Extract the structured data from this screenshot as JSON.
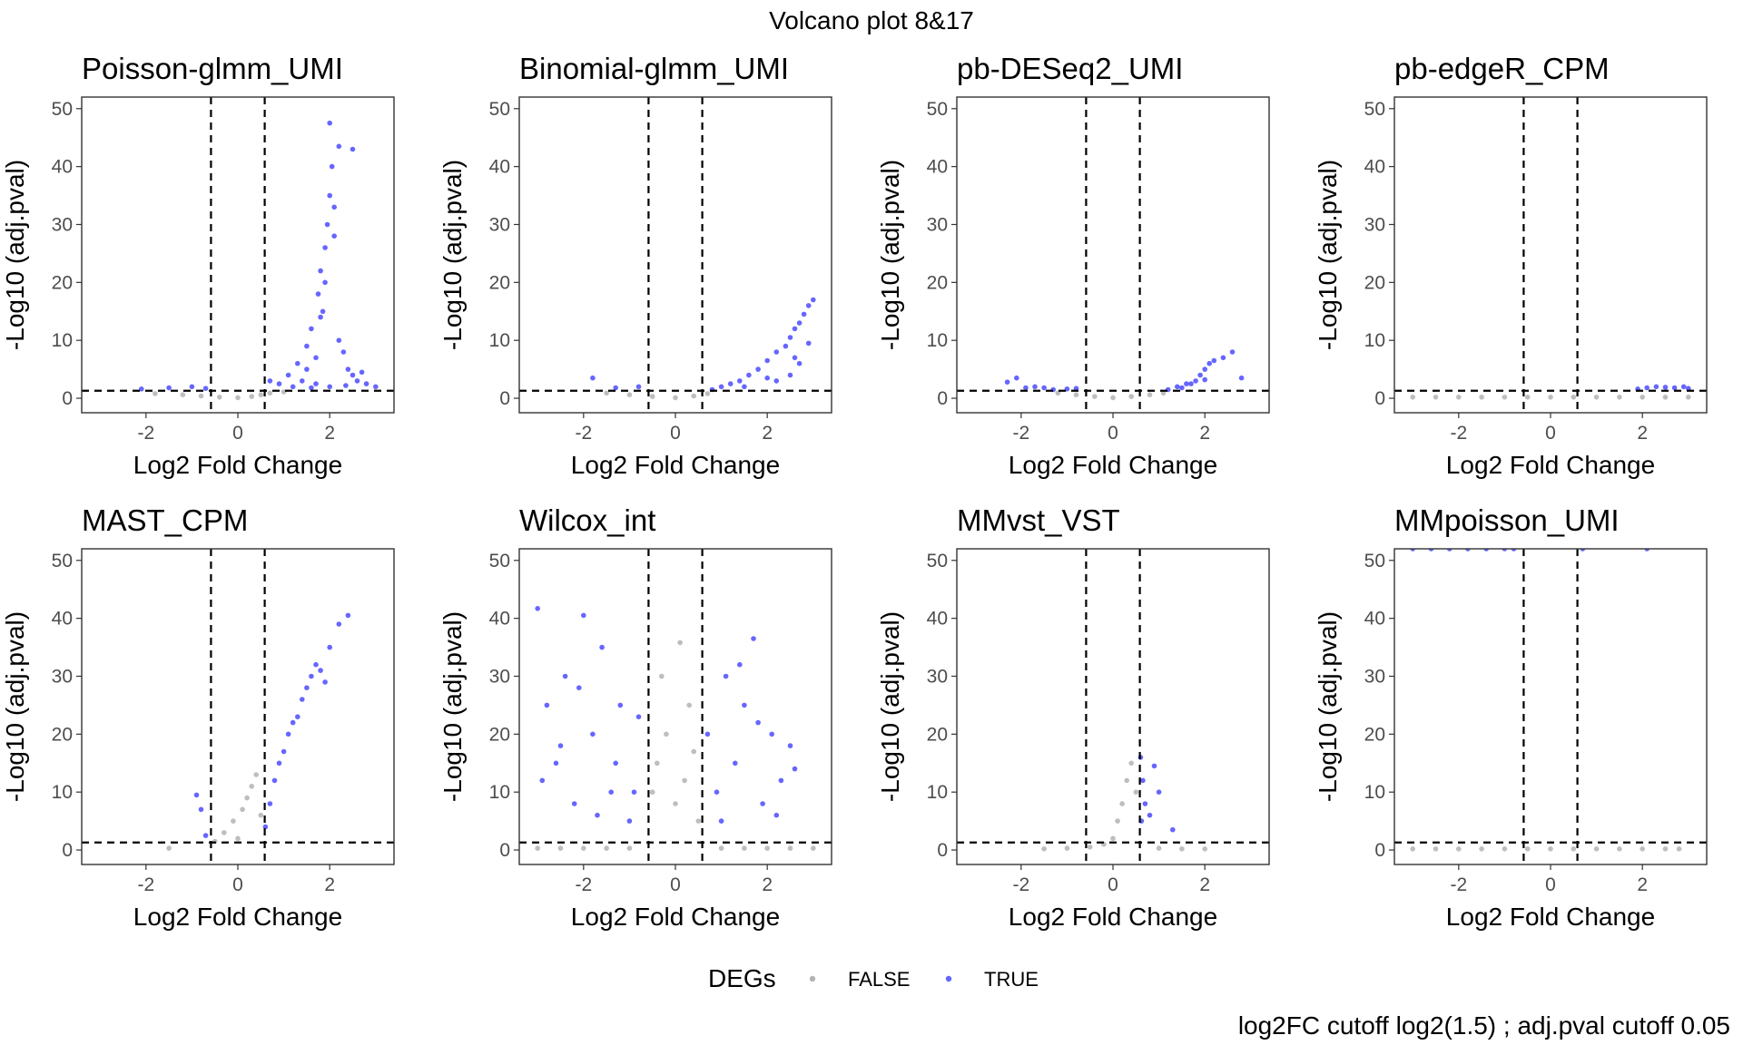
{
  "figure": {
    "title": "Volcano plot 8&17",
    "caption": "log2FC cutoff  log2(1.5) ; adj.pval cutoff 0.05"
  },
  "legend": {
    "title": "DEGs",
    "items": [
      {
        "label": "FALSE",
        "color": "#b3b3b3"
      },
      {
        "label": "TRUE",
        "color": "#0000ff"
      }
    ]
  },
  "colors": {
    "false_points": "#b3b3b3",
    "true_points": "#0000ff",
    "cutoff_lines": "#000000"
  },
  "chart_data": [
    {
      "type": "scatter",
      "title": "Poisson-glmm_UMI",
      "xlabel": "Log2 Fold Change",
      "ylabel": "-Log10 (adj.pval)",
      "xlim": [
        -3.4,
        3.4
      ],
      "ylim": [
        -2.5,
        52
      ],
      "xticks": [
        -2,
        0,
        2
      ],
      "yticks": [
        0,
        10,
        20,
        30,
        40,
        50
      ],
      "cutoffs": {
        "vlines": [
          -0.585,
          0.585
        ],
        "hline": 1.301
      },
      "series": [
        {
          "name": "FALSE",
          "x": [
            -1.8,
            -1.2,
            -0.8,
            -0.4,
            0,
            0.3,
            0.5,
            0.7,
            1.0
          ],
          "y": [
            0.8,
            0.6,
            0.4,
            0.2,
            0.1,
            0.3,
            0.6,
            0.9,
            1.1
          ]
        },
        {
          "name": "TRUE",
          "x": [
            -2.1,
            -1.5,
            -1.0,
            -0.7,
            0.7,
            0.9,
            1.1,
            1.3,
            1.4,
            1.5,
            1.6,
            1.7,
            1.75,
            1.8,
            1.85,
            1.9,
            1.95,
            2.0,
            2.05,
            2.1,
            2.2,
            2.3,
            2.4,
            2.5,
            2.6,
            2.7,
            2.8,
            3.0,
            1.2,
            1.5,
            1.8,
            2.0,
            2.2,
            2.5,
            1.6,
            1.9,
            2.1,
            1.7,
            2.0,
            2.35
          ],
          "y": [
            1.6,
            1.8,
            2.0,
            1.7,
            3.0,
            2.5,
            4.0,
            6.0,
            3.0,
            9.0,
            12.0,
            7.0,
            18.0,
            22.0,
            15.0,
            26.0,
            30.0,
            35.0,
            40.0,
            33.0,
            10.0,
            8.0,
            5.0,
            4.0,
            3.0,
            4.5,
            2.5,
            2.0,
            2.0,
            5.0,
            14.0,
            47.5,
            43.5,
            43.0,
            1.8,
            20.0,
            28.0,
            2.5,
            2.0,
            2.2
          ]
        }
      ]
    },
    {
      "type": "scatter",
      "title": "Binomial-glmm_UMI",
      "xlabel": "Log2 Fold Change",
      "ylabel": "-Log10 (adj.pval)",
      "xlim": [
        -3.4,
        3.4
      ],
      "ylim": [
        -2.5,
        52
      ],
      "xticks": [
        -2,
        0,
        2
      ],
      "yticks": [
        0,
        10,
        20,
        30,
        40,
        50
      ],
      "cutoffs": {
        "vlines": [
          -0.585,
          0.585
        ],
        "hline": 1.301
      },
      "series": [
        {
          "name": "FALSE",
          "x": [
            -1.5,
            -1.0,
            -0.5,
            0,
            0.4,
            0.7
          ],
          "y": [
            0.9,
            0.6,
            0.3,
            0.1,
            0.4,
            0.8
          ]
        },
        {
          "name": "TRUE",
          "x": [
            -1.8,
            -1.3,
            -0.8,
            0.8,
            1.0,
            1.2,
            1.4,
            1.6,
            1.8,
            2.0,
            2.2,
            2.4,
            2.5,
            2.6,
            2.7,
            2.8,
            2.9,
            3.0,
            2.2,
            2.5,
            2.7,
            2.9,
            1.5,
            2.0,
            2.6
          ],
          "y": [
            3.5,
            1.8,
            2.0,
            1.5,
            2.0,
            2.5,
            3.0,
            4.0,
            5.0,
            6.5,
            8.0,
            9.0,
            10.5,
            12.0,
            13.0,
            14.5,
            16.0,
            17.0,
            3.0,
            4.0,
            6.0,
            9.5,
            2.0,
            3.5,
            7.0
          ]
        }
      ]
    },
    {
      "type": "scatter",
      "title": "pb-DESeq2_UMI",
      "xlabel": "Log2 Fold Change",
      "ylabel": "-Log10 (adj.pval)",
      "xlim": [
        -3.4,
        3.4
      ],
      "ylim": [
        -2.5,
        52
      ],
      "xticks": [
        -2,
        0,
        2
      ],
      "yticks": [
        0,
        10,
        20,
        30,
        40,
        50
      ],
      "cutoffs": {
        "vlines": [
          -0.585,
          0.585
        ],
        "hline": 1.301
      },
      "series": [
        {
          "name": "FALSE",
          "x": [
            -1.2,
            -0.8,
            -0.4,
            0,
            0.4,
            0.8,
            1.1
          ],
          "y": [
            0.9,
            0.6,
            0.3,
            0.1,
            0.3,
            0.6,
            0.9
          ]
        },
        {
          "name": "TRUE",
          "x": [
            -2.3,
            -2.1,
            -1.9,
            -1.7,
            -1.5,
            -1.3,
            -1.0,
            -0.8,
            1.2,
            1.4,
            1.6,
            1.8,
            1.9,
            2.0,
            2.1,
            2.2,
            2.4,
            2.6,
            2.8,
            1.5,
            1.7,
            2.0
          ],
          "y": [
            2.8,
            3.5,
            1.8,
            2.0,
            1.8,
            1.5,
            1.6,
            1.7,
            1.5,
            2.0,
            2.5,
            3.0,
            4.0,
            5.0,
            6.0,
            6.5,
            7.0,
            8.0,
            3.5,
            1.8,
            2.5,
            3.2
          ]
        }
      ]
    },
    {
      "type": "scatter",
      "title": "pb-edgeR_CPM",
      "xlabel": "Log2 Fold Change",
      "ylabel": "-Log10 (adj.pval)",
      "xlim": [
        -3.4,
        3.4
      ],
      "ylim": [
        -2.5,
        52
      ],
      "xticks": [
        -2,
        0,
        2
      ],
      "yticks": [
        0,
        10,
        20,
        30,
        40,
        50
      ],
      "cutoffs": {
        "vlines": [
          -0.585,
          0.585
        ],
        "hline": 1.301
      },
      "series": [
        {
          "name": "FALSE",
          "x": [
            -3.0,
            -2.5,
            -2.0,
            -1.5,
            -1.0,
            -0.5,
            0,
            0.5,
            1.0,
            1.5,
            2.0,
            2.5,
            3.0
          ],
          "y": [
            0.2,
            0.2,
            0.2,
            0.2,
            0.2,
            0.2,
            0.2,
            0.2,
            0.2,
            0.2,
            0.2,
            0.2,
            0.2
          ]
        },
        {
          "name": "TRUE",
          "x": [
            1.9,
            2.1,
            2.3,
            2.5,
            2.7,
            2.9,
            3.0
          ],
          "y": [
            1.6,
            1.8,
            2.0,
            1.9,
            1.8,
            2.0,
            1.7
          ]
        }
      ]
    },
    {
      "type": "scatter",
      "title": "MAST_CPM",
      "xlabel": "Log2 Fold Change",
      "ylabel": "-Log10 (adj.pval)",
      "xlim": [
        -3.4,
        3.4
      ],
      "ylim": [
        -2.5,
        52
      ],
      "xticks": [
        -2,
        0,
        2
      ],
      "yticks": [
        0,
        10,
        20,
        30,
        40,
        50
      ],
      "cutoffs": {
        "vlines": [
          -0.585,
          0.585
        ],
        "hline": 1.301
      },
      "series": [
        {
          "name": "FALSE",
          "x": [
            -1.5,
            -0.5,
            -0.3,
            -0.1,
            0,
            0.1,
            0.2,
            0.3,
            0.4,
            0.5
          ],
          "y": [
            0.3,
            1.5,
            3.0,
            5.0,
            2.0,
            7.0,
            9.0,
            11.0,
            13.0,
            6.0
          ]
        },
        {
          "name": "TRUE",
          "x": [
            -0.9,
            -0.8,
            -0.7,
            0.6,
            0.7,
            0.8,
            0.9,
            1.0,
            1.1,
            1.2,
            1.3,
            1.4,
            1.5,
            1.6,
            1.7,
            1.8,
            1.9,
            2.0,
            2.2,
            2.4
          ],
          "y": [
            9.5,
            7.0,
            2.5,
            4.0,
            8.0,
            12.0,
            15.0,
            17.0,
            20.0,
            22.0,
            23.0,
            26.0,
            28.0,
            30.0,
            32.0,
            31.0,
            29.0,
            35.0,
            39.0,
            40.5
          ]
        }
      ]
    },
    {
      "type": "scatter",
      "title": "Wilcox_int",
      "xlabel": "Log2 Fold Change",
      "ylabel": "-Log10 (adj.pval)",
      "xlim": [
        -3.4,
        3.4
      ],
      "ylim": [
        -2.5,
        52
      ],
      "xticks": [
        -2,
        0,
        2
      ],
      "yticks": [
        0,
        10,
        20,
        30,
        40,
        50
      ],
      "cutoffs": {
        "vlines": [
          -0.585,
          0.585
        ],
        "hline": 1.301
      },
      "series": [
        {
          "name": "FALSE",
          "x": [
            -3.0,
            -2.5,
            -2.0,
            -1.5,
            -1.0,
            -0.5,
            -0.4,
            -0.2,
            0,
            0.2,
            0.4,
            0.5,
            1.0,
            1.5,
            2.0,
            2.5,
            3.0,
            -0.3,
            0.1,
            0.3
          ],
          "y": [
            0.3,
            0.3,
            0.3,
            0.3,
            0.3,
            10.0,
            15.0,
            20.0,
            8.0,
            12.0,
            17.0,
            5.0,
            0.3,
            0.3,
            0.3,
            0.3,
            0.3,
            30.0,
            35.8,
            25.0
          ]
        },
        {
          "name": "TRUE",
          "x": [
            -3.0,
            -2.8,
            -2.6,
            -2.4,
            -2.2,
            -2.0,
            -1.8,
            -1.6,
            -1.4,
            -1.2,
            -1.0,
            -0.8,
            -2.9,
            -2.5,
            -2.1,
            -1.7,
            -1.3,
            -0.9,
            0.7,
            0.9,
            1.1,
            1.3,
            1.5,
            1.7,
            1.9,
            2.1,
            2.3,
            2.5,
            1.0,
            1.4,
            1.8,
            2.2,
            2.6
          ],
          "y": [
            41.7,
            25.0,
            15.0,
            30.0,
            8.0,
            40.5,
            20.0,
            35.0,
            10.0,
            25.0,
            5.0,
            23.0,
            12.0,
            18.0,
            28.0,
            6.0,
            15.0,
            10.0,
            20.0,
            10.0,
            30.0,
            15.0,
            25.0,
            36.5,
            8.0,
            20.0,
            12.0,
            18.0,
            5.0,
            32.0,
            22.0,
            6.0,
            14.0
          ]
        }
      ]
    },
    {
      "type": "scatter",
      "title": "MMvst_VST",
      "xlabel": "Log2 Fold Change",
      "ylabel": "-Log10 (adj.pval)",
      "xlim": [
        -3.4,
        3.4
      ],
      "ylim": [
        -2.5,
        52
      ],
      "xticks": [
        -2,
        0,
        2
      ],
      "yticks": [
        0,
        10,
        20,
        30,
        40,
        50
      ],
      "cutoffs": {
        "vlines": [
          -0.585,
          0.585
        ],
        "hline": 1.301
      },
      "series": [
        {
          "name": "FALSE",
          "x": [
            -1.5,
            -1.0,
            -0.5,
            -0.2,
            0,
            0.1,
            0.2,
            0.3,
            0.4,
            0.5,
            1.0,
            1.5,
            2.0
          ],
          "y": [
            0.2,
            0.3,
            0.5,
            1.0,
            2.0,
            5.0,
            8.0,
            12.0,
            15.0,
            10.0,
            0.3,
            0.2,
            0.2
          ]
        },
        {
          "name": "TRUE",
          "x": [
            0.6,
            0.65,
            0.7,
            0.8,
            0.9,
            1.0,
            1.3,
            0.62
          ],
          "y": [
            16.0,
            12.0,
            8.0,
            6.0,
            14.5,
            10.0,
            3.5,
            5.0
          ]
        }
      ]
    },
    {
      "type": "scatter",
      "title": "MMpoisson_UMI",
      "xlabel": "Log2 Fold Change",
      "ylabel": "-Log10 (adj.pval)",
      "xlim": [
        -3.4,
        3.4
      ],
      "ylim": [
        -2.5,
        52
      ],
      "xticks": [
        -2,
        0,
        2
      ],
      "yticks": [
        0,
        10,
        20,
        30,
        40,
        50
      ],
      "cutoffs": {
        "vlines": [
          -0.585,
          0.585
        ],
        "hline": 1.301
      },
      "series": [
        {
          "name": "FALSE",
          "x": [
            -3.0,
            -2.5,
            -2.0,
            -1.5,
            -1.0,
            -0.5,
            0,
            0.5,
            1.0,
            1.5,
            2.0,
            2.5,
            2.8
          ],
          "y": [
            0.2,
            0.2,
            0.2,
            0.2,
            0.2,
            0.2,
            0.2,
            0.2,
            0.2,
            0.2,
            0.2,
            0.2,
            0.2
          ]
        },
        {
          "name": "TRUE",
          "x": [
            -3.0,
            -2.6,
            -2.2,
            -1.8,
            -1.4,
            -1.0,
            -0.8,
            0.7,
            2.1
          ],
          "y": [
            52,
            52,
            52,
            52,
            52,
            52,
            52,
            52,
            52
          ]
        }
      ]
    }
  ]
}
